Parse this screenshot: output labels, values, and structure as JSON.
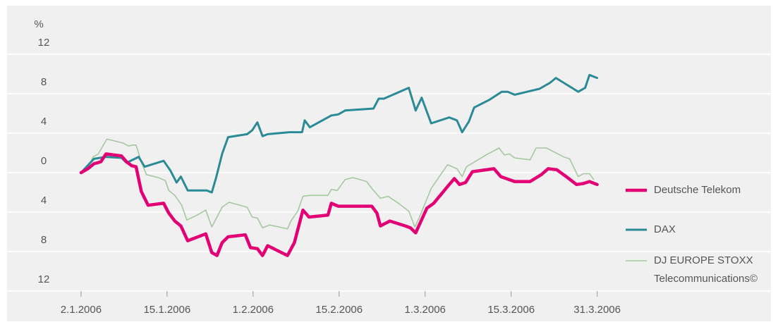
{
  "chart_data": {
    "type": "line",
    "y_label": "%",
    "xlim": [
      -8.6,
      80.2
    ],
    "xticks": [
      {
        "value": 0,
        "label": "2.1.2006"
      },
      {
        "value": 10,
        "label": "15.1.2006"
      },
      {
        "value": 20,
        "label": "1.2.2006"
      },
      {
        "value": 30,
        "label": "15.2.2006"
      },
      {
        "value": 40,
        "label": "1.3.2006"
      },
      {
        "value": 50,
        "label": "15.3.2006"
      },
      {
        "value": 60,
        "label": "31.3.2006"
      }
    ],
    "ylim": [
      -13.5,
      16.5
    ],
    "yticks": [
      {
        "value": -12,
        "label": "12"
      },
      {
        "value": -8,
        "label": "8"
      },
      {
        "value": -4,
        "label": "4"
      },
      0,
      4,
      8,
      12
    ],
    "grid": true,
    "legend": "right",
    "series": [
      {
        "name": "Deutsche Telekom",
        "color": "#e20074",
        "width": 4.5,
        "x": [
          0,
          0.8,
          1.5,
          2.3,
          2.9,
          4.7,
          5.3,
          5.9,
          6.4,
          7.0,
          7.8,
          9.6,
          10.2,
          10.9,
          11.6,
          12.4,
          14.5,
          15.2,
          15.8,
          16.4,
          17.1,
          19.1,
          19.7,
          20.5,
          21.1,
          21.7,
          24.0,
          24.8,
          25.8,
          26.5,
          28.7,
          29.1,
          29.9,
          31.6,
          32.4,
          33.8,
          34.4,
          34.8,
          35.9,
          37.7,
          38.3,
          38.9,
          40.2,
          41.0,
          42.8,
          43.4,
          44.0,
          44.7,
          45.5,
          48.0,
          48.8,
          50.4,
          52.2,
          53.5,
          54.3,
          55.3,
          56.4,
          57.6,
          58.4,
          59.1,
          60.0
        ],
        "values": [
          0,
          0.4,
          0.9,
          1.1,
          1.9,
          1.7,
          1.1,
          0.7,
          0.6,
          -1.9,
          -3.3,
          -3.1,
          -4.1,
          -4.9,
          -5.4,
          -6.9,
          -6.2,
          -8.1,
          -8.4,
          -7.1,
          -6.5,
          -6.3,
          -7.6,
          -7.7,
          -8.4,
          -7.4,
          -8.4,
          -7.1,
          -3.8,
          -4.5,
          -4.3,
          -3.1,
          -3.4,
          -3.4,
          -3.4,
          -3.4,
          -4.1,
          -5.4,
          -4.9,
          -5.4,
          -5.6,
          -6.1,
          -3.6,
          -3.1,
          -1.2,
          -0.6,
          -1.2,
          -1.0,
          0.1,
          0.4,
          -0.4,
          -0.9,
          -0.9,
          -0.2,
          0.4,
          0.3,
          -0.4,
          -1.2,
          -1.1,
          -0.9,
          -1.2
        ]
      },
      {
        "name": "DAX",
        "color": "#2a8a96",
        "width": 3,
        "x": [
          0,
          1.5,
          2.9,
          4.7,
          5.3,
          6.7,
          7.4,
          9.6,
          10.4,
          11.1,
          11.6,
          12.4,
          14.6,
          15.2,
          15.7,
          16.4,
          17.1,
          19.3,
          19.9,
          20.5,
          21.1,
          21.7,
          24.2,
          25.7,
          26.0,
          26.6,
          29.1,
          29.9,
          30.7,
          34.0,
          34.6,
          35.2,
          38.1,
          38.9,
          39.6,
          40.7,
          42.8,
          43.7,
          44.3,
          45.1,
          45.7,
          47.5,
          48.9,
          49.6,
          50.4,
          53.3,
          54.5,
          55.2,
          57.8,
          58.6,
          59.1,
          60.0
        ],
        "values": [
          0,
          1.4,
          1.6,
          1.5,
          1.0,
          1.6,
          0.6,
          1.2,
          0.2,
          -1.0,
          -0.4,
          -1.8,
          -1.8,
          -2.0,
          -0.5,
          1.9,
          3.6,
          3.9,
          4.3,
          5.1,
          3.7,
          3.9,
          4.1,
          4.1,
          5.3,
          4.6,
          5.8,
          5.9,
          6.3,
          6.5,
          7.5,
          7.5,
          8.6,
          6.3,
          7.6,
          5.0,
          5.6,
          5.3,
          4.1,
          5.2,
          6.6,
          7.4,
          8.2,
          8.2,
          7.9,
          8.5,
          9.1,
          9.6,
          8.2,
          8.6,
          9.9,
          9.6
        ]
      },
      {
        "name": "DJ EUROPE STOXX Telecommunications©",
        "color": "#a5c8a0",
        "width": 1.6,
        "x": [
          0,
          0.8,
          1.4,
          2.0,
          3.0,
          4.9,
          5.5,
          6.0,
          6.4,
          7.0,
          7.6,
          9.0,
          9.8,
          10.2,
          10.9,
          11.7,
          12.3,
          13.5,
          14.5,
          15.2,
          16.4,
          17.2,
          19.3,
          19.9,
          20.5,
          21.1,
          21.9,
          23.0,
          24.0,
          24.4,
          25.2,
          25.8,
          26.6,
          28.7,
          29.1,
          29.8,
          30.7,
          31.6,
          33.2,
          34.0,
          34.8,
          35.7,
          36.9,
          38.1,
          38.8,
          39.3,
          40.7,
          42.6,
          43.7,
          44.3,
          44.8,
          47.1,
          48.6,
          49.2,
          49.8,
          50.4,
          52.2,
          52.9,
          54.1,
          56.1,
          56.8,
          57.8,
          58.4,
          59.1,
          59.6
        ],
        "values": [
          0,
          0.5,
          1.6,
          1.9,
          3.4,
          3.0,
          2.7,
          2.8,
          2.8,
          1.1,
          -0.2,
          -0.5,
          -0.8,
          -1.8,
          -2.3,
          -3.3,
          -4.8,
          -4.3,
          -3.8,
          -5.5,
          -3.5,
          -3.0,
          -3.5,
          -4.5,
          -4.6,
          -5.6,
          -5.3,
          -5.5,
          -5.7,
          -4.9,
          -3.9,
          -2.4,
          -2.3,
          -2.3,
          -1.7,
          -1.8,
          -0.7,
          -0.5,
          -0.9,
          -1.8,
          -2.6,
          -2.4,
          -3.1,
          -3.9,
          -5.5,
          -4.6,
          -1.6,
          0.8,
          0.4,
          -0.4,
          0.6,
          1.8,
          2.5,
          1.8,
          1.9,
          1.5,
          1.3,
          2.5,
          2.5,
          1.6,
          1.4,
          -0.4,
          -0.1,
          -0.1,
          -0.7
        ]
      }
    ]
  }
}
